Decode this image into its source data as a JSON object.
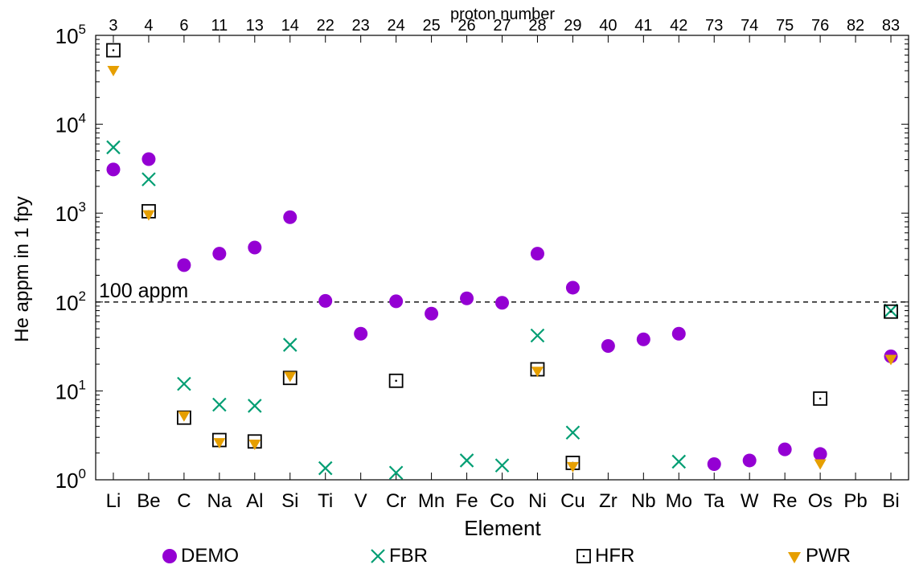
{
  "chart_data": {
    "type": "scatter",
    "xlabel": "Element",
    "ylabel": "He appm in 1 fpy",
    "top_axis_label": "proton number",
    "y_scale": "log",
    "ylim": [
      1,
      100000
    ],
    "y_tick_exponents": [
      "0",
      "1",
      "2",
      "3",
      "4",
      "5"
    ],
    "categories": [
      "Li",
      "Be",
      "C",
      "Na",
      "Al",
      "Si",
      "Ti",
      "V",
      "Cr",
      "Mn",
      "Fe",
      "Co",
      "Ni",
      "Cu",
      "Zr",
      "Nb",
      "Mo",
      "Ta",
      "W",
      "Re",
      "Os",
      "Pb",
      "Bi"
    ],
    "proton_numbers": [
      "3",
      "4",
      "6",
      "11",
      "13",
      "14",
      "22",
      "23",
      "24",
      "25",
      "26",
      "27",
      "28",
      "29",
      "40",
      "41",
      "42",
      "73",
      "74",
      "75",
      "76",
      "82",
      "83"
    ],
    "reference_line": {
      "value": 100,
      "label": "100 appm",
      "style": "dashed"
    },
    "legend_position": "bottom",
    "grid": false,
    "series": [
      {
        "name": "DEMO",
        "marker": "circle",
        "color": "#9400d3",
        "values": [
          3100,
          4050,
          260,
          350,
          410,
          900,
          103,
          44,
          102,
          74,
          110,
          98,
          350,
          145,
          32,
          38,
          44,
          1.5,
          1.65,
          2.2,
          1.95,
          null,
          24.5
        ]
      },
      {
        "name": "FBR",
        "marker": "x",
        "color": "#009e73",
        "values": [
          5500,
          2400,
          12,
          7,
          6.8,
          33,
          1.35,
          null,
          1.2,
          null,
          1.65,
          1.45,
          42,
          3.4,
          null,
          null,
          1.6,
          null,
          null,
          null,
          null,
          null,
          80
        ]
      },
      {
        "name": "HFR",
        "marker": "square-dot",
        "color": "#000000",
        "values": [
          68000,
          1050,
          5,
          2.8,
          2.7,
          14,
          null,
          null,
          13,
          null,
          null,
          null,
          17.5,
          1.55,
          null,
          null,
          null,
          null,
          null,
          null,
          8.2,
          null,
          78
        ]
      },
      {
        "name": "PWR",
        "marker": "triangle-down",
        "color": "#e69f00",
        "values": [
          40000,
          950,
          5.2,
          2.6,
          2.5,
          14.5,
          null,
          null,
          null,
          null,
          null,
          null,
          16.5,
          1.4,
          null,
          null,
          null,
          null,
          null,
          null,
          1.5,
          null,
          22.5
        ]
      }
    ]
  }
}
